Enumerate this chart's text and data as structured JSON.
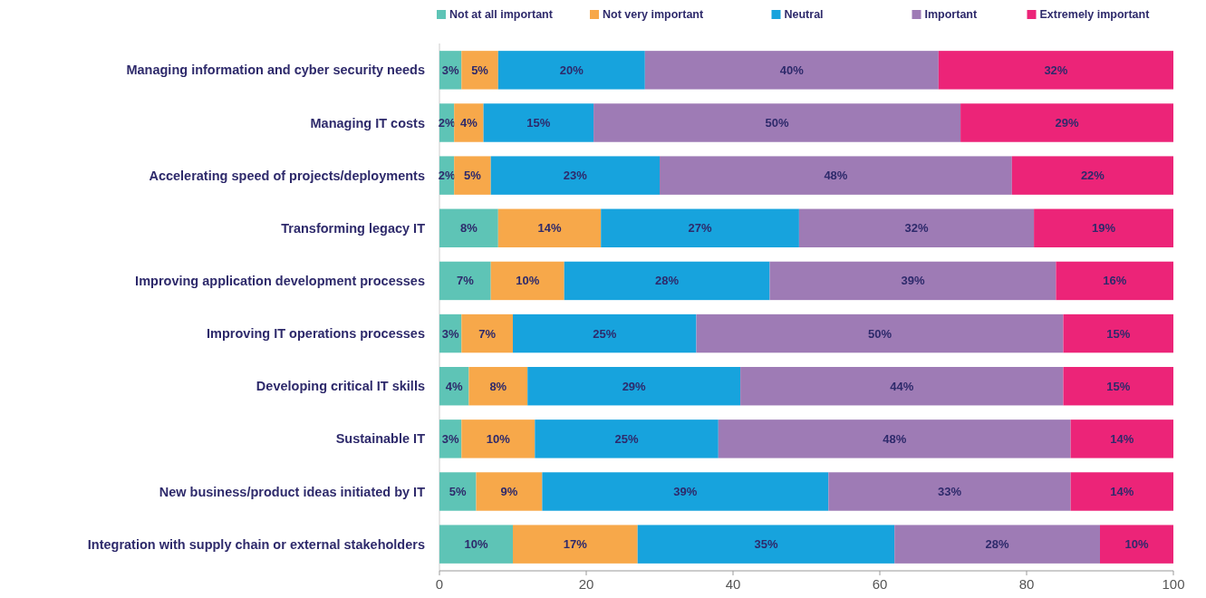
{
  "chart_data": {
    "type": "bar",
    "orientation": "horizontal",
    "stacked": true,
    "legend": "top",
    "grid": false,
    "categories": [
      "Managing information and cyber security needs",
      "Managing IT costs",
      "Accelerating speed of projects/deployments",
      "Transforming legacy IT",
      "Improving application development processes",
      "Improving IT operations processes",
      "Developing critical IT skills",
      "Sustainable IT",
      "New business/product ideas initiated by IT",
      "Integration with supply chain or external stakeholders"
    ],
    "xlim": [
      0,
      100
    ],
    "xticks": [
      0,
      20,
      40,
      60,
      80,
      100
    ],
    "series": [
      {
        "name": "Not at all important",
        "color": "#5ec4b6",
        "values": [
          3,
          2,
          2,
          8,
          7,
          3,
          4,
          3,
          5,
          10
        ],
        "value_labels": [
          "3%",
          "2%",
          "2%",
          "8%",
          "7%",
          "3%",
          "4%",
          "3%",
          "5%",
          "10%"
        ]
      },
      {
        "name": "Not very important",
        "color": "#f7a84a",
        "values": [
          5,
          4,
          5,
          14,
          10,
          7,
          8,
          10,
          9,
          17
        ],
        "value_labels": [
          "5%",
          "4%",
          "5%",
          "14%",
          "10%",
          "7%",
          "8%",
          "10%",
          "9%",
          "17%"
        ]
      },
      {
        "name": "Neutral",
        "color": "#17a3dd",
        "values": [
          20,
          15,
          23,
          27,
          28,
          25,
          29,
          25,
          39,
          35
        ],
        "value_labels": [
          "20%",
          "15%",
          "23%",
          "27%",
          "28%",
          "25%",
          "29%",
          "25%",
          "39%",
          "35%"
        ]
      },
      {
        "name": "Important",
        "color": "#9e7bb5",
        "values": [
          40,
          50,
          48,
          32,
          39,
          50,
          44,
          48,
          33,
          28
        ],
        "value_labels": [
          "40%",
          "50%",
          "48%",
          "32%",
          "39%",
          "50%",
          "44%",
          "48%",
          "33%",
          "28%"
        ]
      },
      {
        "name": "Extremely important",
        "color": "#ec2478",
        "values": [
          32,
          29,
          22,
          19,
          16,
          15,
          15,
          14,
          14,
          10
        ],
        "value_labels": [
          "32%",
          "29%",
          "22%",
          "19%",
          "16%",
          "15%",
          "15%",
          "14%",
          "14%",
          "10%"
        ]
      }
    ]
  }
}
